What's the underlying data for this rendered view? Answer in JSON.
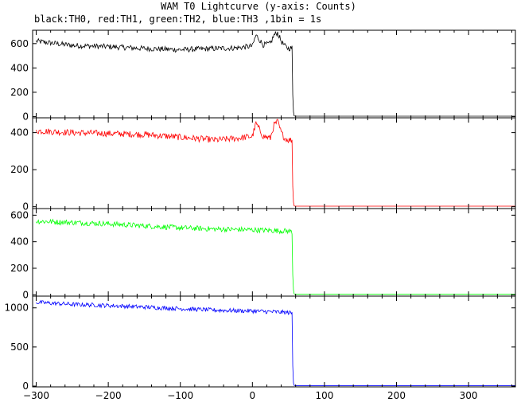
{
  "chart_data": {
    "type": "line",
    "title": "WAM T0 Lightcurve (y-axis: Counts)",
    "subtitle": "black:TH0, red:TH1, green:TH2, blue:TH3 ,1bin = 1s",
    "xlim": [
      -305,
      365
    ],
    "x_ticks": [
      -300,
      -200,
      -100,
      0,
      100,
      200,
      300
    ],
    "x_tick_labels": [
      "−300",
      "−200",
      "−100",
      "0",
      "100",
      "200",
      "300"
    ],
    "grid": false,
    "panels": [
      {
        "name": "TH0",
        "color": "#000000",
        "ylim": [
          -10,
          710
        ],
        "y_ticks": [
          0,
          200,
          400,
          600
        ],
        "y_tick_labels": [
          "0",
          "200",
          "400",
          "600"
        ],
        "x": [
          -300,
          -250,
          -200,
          -150,
          -100,
          -50,
          -20,
          0,
          5,
          15,
          25,
          30,
          35,
          40,
          45,
          50,
          55,
          56,
          57,
          58,
          60,
          100,
          200,
          300,
          365
        ],
        "y": [
          620,
          585,
          575,
          560,
          550,
          560,
          565,
          580,
          670,
          590,
          600,
          670,
          690,
          620,
          580,
          560,
          565,
          180,
          40,
          5,
          3,
          3,
          3,
          3,
          3
        ],
        "noise": 45
      },
      {
        "name": "TH1",
        "color": "#ff0000",
        "ylim": [
          -10,
          480
        ],
        "y_ticks": [
          0,
          200,
          400
        ],
        "y_tick_labels": [
          "0",
          "200",
          "400"
        ],
        "x": [
          -300,
          -250,
          -200,
          -150,
          -100,
          -50,
          -20,
          0,
          5,
          15,
          25,
          30,
          35,
          40,
          45,
          50,
          55,
          56,
          57,
          58,
          60,
          100,
          200,
          300,
          365
        ],
        "y": [
          410,
          400,
          395,
          390,
          375,
          360,
          370,
          380,
          450,
          380,
          370,
          440,
          460,
          400,
          370,
          360,
          360,
          110,
          25,
          4,
          3,
          3,
          3,
          3,
          3
        ],
        "noise": 35
      },
      {
        "name": "TH2",
        "color": "#00ff00",
        "ylim": [
          -10,
          650
        ],
        "y_ticks": [
          0,
          200,
          400,
          600
        ],
        "y_tick_labels": [
          "0",
          "200",
          "400",
          "600"
        ],
        "x": [
          -300,
          -250,
          -200,
          -150,
          -100,
          -50,
          0,
          50,
          55,
          56,
          57,
          58,
          60,
          100,
          200,
          300,
          365
        ],
        "y": [
          555,
          545,
          535,
          520,
          505,
          495,
          490,
          480,
          475,
          150,
          35,
          6,
          4,
          4,
          4,
          4,
          4
        ],
        "noise": 40
      },
      {
        "name": "TH3",
        "color": "#0000ff",
        "ylim": [
          -10,
          1150
        ],
        "y_ticks": [
          0,
          500,
          1000
        ],
        "y_tick_labels": [
          "0",
          "500",
          "1000"
        ],
        "x": [
          -300,
          -250,
          -200,
          -150,
          -100,
          -50,
          0,
          50,
          55,
          56,
          57,
          58,
          60,
          100,
          200,
          300,
          365
        ],
        "y": [
          1070,
          1045,
          1030,
          1010,
          990,
          970,
          960,
          940,
          930,
          260,
          40,
          8,
          6,
          6,
          6,
          6,
          6
        ],
        "noise": 55
      }
    ]
  }
}
